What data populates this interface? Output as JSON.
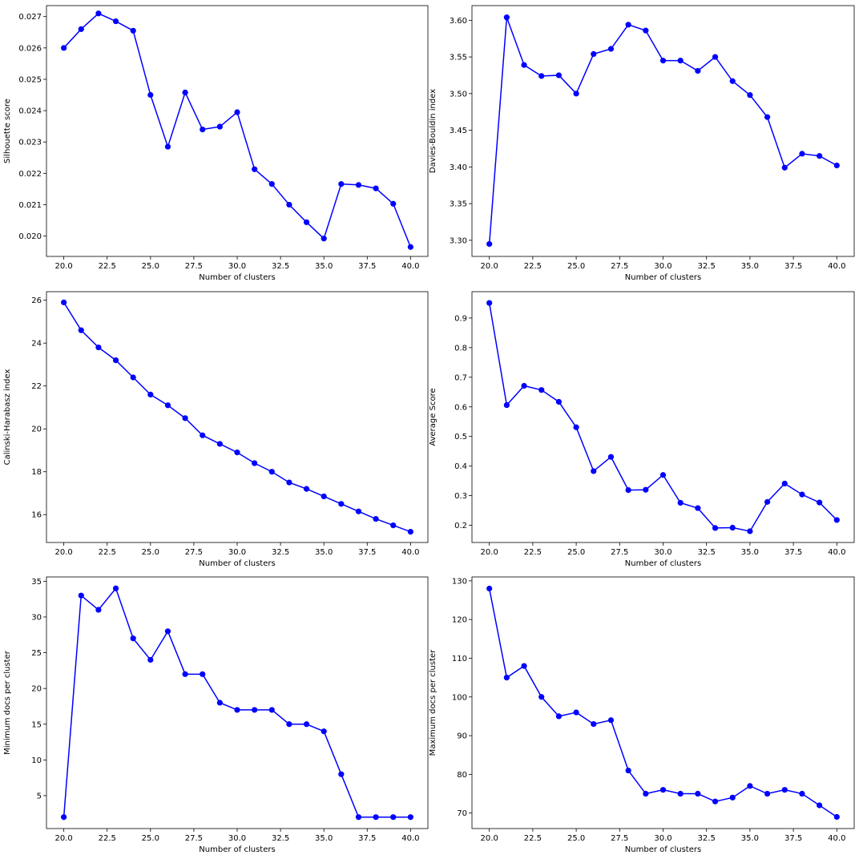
{
  "colors": {
    "series": "#0000ff",
    "marker": "#0000ff",
    "axis": "#000000",
    "background": "#ffffff"
  },
  "chart_data": [
    {
      "type": "line",
      "xlabel": "Number of clusters",
      "ylabel": "Silhouette score",
      "x": [
        20,
        21,
        22,
        23,
        24,
        25,
        26,
        27,
        28,
        29,
        30,
        31,
        32,
        33,
        34,
        35,
        36,
        37,
        38,
        39,
        40
      ],
      "values": [
        0.026,
        0.0266,
        0.0271,
        0.02685,
        0.02655,
        0.0245,
        0.02285,
        0.02458,
        0.0234,
        0.02349,
        0.02395,
        0.02213,
        0.02166,
        0.021,
        0.02044,
        0.01992,
        0.02166,
        0.02163,
        0.02152,
        0.02103,
        0.01965
      ],
      "xlim": [
        19,
        41
      ],
      "ylim": [
        0.01935,
        0.02735
      ],
      "xticks": [
        20.0,
        22.5,
        25.0,
        27.5,
        30.0,
        32.5,
        35.0,
        37.5,
        40.0
      ],
      "xtick_labels": [
        "20.0",
        "22.5",
        "25.0",
        "27.5",
        "30.0",
        "32.5",
        "35.0",
        "37.5",
        "40.0"
      ],
      "yticks": [
        0.02,
        0.021,
        0.022,
        0.023,
        0.024,
        0.025,
        0.026,
        0.027
      ],
      "ytick_labels": [
        "0.020",
        "0.021",
        "0.022",
        "0.023",
        "0.024",
        "0.025",
        "0.026",
        "0.027"
      ],
      "grid": false
    },
    {
      "type": "line",
      "xlabel": "Number of clusters",
      "ylabel": "Davies-Bouldin index",
      "x": [
        20,
        21,
        22,
        23,
        24,
        25,
        26,
        27,
        28,
        29,
        30,
        31,
        32,
        33,
        34,
        35,
        36,
        37,
        38,
        39,
        40
      ],
      "values": [
        3.295,
        3.604,
        3.539,
        3.524,
        3.525,
        3.5,
        3.554,
        3.561,
        3.594,
        3.586,
        3.545,
        3.545,
        3.531,
        3.55,
        3.517,
        3.498,
        3.468,
        3.399,
        3.418,
        3.415,
        3.402
      ],
      "xlim": [
        19,
        41
      ],
      "ylim": [
        3.278,
        3.62
      ],
      "xticks": [
        20.0,
        22.5,
        25.0,
        27.5,
        30.0,
        32.5,
        35.0,
        37.5,
        40.0
      ],
      "xtick_labels": [
        "20.0",
        "22.5",
        "25.0",
        "27.5",
        "30.0",
        "32.5",
        "35.0",
        "37.5",
        "40.0"
      ],
      "yticks": [
        3.3,
        3.35,
        3.4,
        3.45,
        3.5,
        3.55,
        3.6
      ],
      "ytick_labels": [
        "3.30",
        "3.35",
        "3.40",
        "3.45",
        "3.50",
        "3.55",
        "3.60"
      ],
      "grid": false
    },
    {
      "type": "line",
      "xlabel": "Number of clusters",
      "ylabel": "Calinski-Harabasz index",
      "x": [
        20,
        21,
        22,
        23,
        24,
        25,
        26,
        27,
        28,
        29,
        30,
        31,
        32,
        33,
        34,
        35,
        36,
        37,
        38,
        39,
        40
      ],
      "values": [
        25.9,
        24.6,
        23.8,
        23.2,
        22.4,
        21.6,
        21.1,
        20.5,
        19.7,
        19.3,
        18.9,
        18.4,
        18.0,
        17.5,
        17.2,
        16.85,
        16.5,
        16.15,
        15.8,
        15.5,
        15.2
      ],
      "xlim": [
        19,
        41
      ],
      "ylim": [
        14.7,
        26.4
      ],
      "xticks": [
        20.0,
        22.5,
        25.0,
        27.5,
        30.0,
        32.5,
        35.0,
        37.5,
        40.0
      ],
      "xtick_labels": [
        "20.0",
        "22.5",
        "25.0",
        "27.5",
        "30.0",
        "32.5",
        "35.0",
        "37.5",
        "40.0"
      ],
      "yticks": [
        16,
        18,
        20,
        22,
        24,
        26
      ],
      "ytick_labels": [
        "16",
        "18",
        "20",
        "22",
        "24",
        "26"
      ],
      "grid": false
    },
    {
      "type": "line",
      "xlabel": "Number of clusters",
      "ylabel": "Average Score",
      "x": [
        20,
        21,
        22,
        23,
        24,
        25,
        26,
        27,
        28,
        29,
        30,
        31,
        32,
        33,
        34,
        35,
        36,
        37,
        38,
        39,
        40
      ],
      "values": [
        0.951,
        0.606,
        0.671,
        0.657,
        0.617,
        0.531,
        0.383,
        0.431,
        0.319,
        0.32,
        0.37,
        0.276,
        0.258,
        0.191,
        0.192,
        0.18,
        0.279,
        0.341,
        0.304,
        0.277,
        0.218
      ],
      "xlim": [
        19,
        41
      ],
      "ylim": [
        0.142,
        0.989
      ],
      "xticks": [
        20.0,
        22.5,
        25.0,
        27.5,
        30.0,
        32.5,
        35.0,
        37.5,
        40.0
      ],
      "xtick_labels": [
        "20.0",
        "22.5",
        "25.0",
        "27.5",
        "30.0",
        "32.5",
        "35.0",
        "37.5",
        "40.0"
      ],
      "yticks": [
        0.2,
        0.3,
        0.4,
        0.5,
        0.6,
        0.7,
        0.8,
        0.9
      ],
      "ytick_labels": [
        "0.2",
        "0.3",
        "0.4",
        "0.5",
        "0.6",
        "0.7",
        "0.8",
        "0.9"
      ],
      "grid": false
    },
    {
      "type": "line",
      "xlabel": "Number of clusters",
      "ylabel": "Minimum docs per cluster",
      "x": [
        20,
        21,
        22,
        23,
        24,
        25,
        26,
        27,
        28,
        29,
        30,
        31,
        32,
        33,
        34,
        35,
        36,
        37,
        38,
        39,
        40
      ],
      "values": [
        2,
        33,
        31,
        34,
        27,
        24,
        28,
        22,
        22,
        18,
        17,
        17,
        17,
        15,
        15,
        14,
        8,
        2,
        2,
        2,
        2
      ],
      "xlim": [
        19,
        41
      ],
      "ylim": [
        0.4,
        35.6
      ],
      "xticks": [
        20.0,
        22.5,
        25.0,
        27.5,
        30.0,
        32.5,
        35.0,
        37.5,
        40.0
      ],
      "xtick_labels": [
        "20.0",
        "22.5",
        "25.0",
        "27.5",
        "30.0",
        "32.5",
        "35.0",
        "37.5",
        "40.0"
      ],
      "yticks": [
        5,
        10,
        15,
        20,
        25,
        30,
        35
      ],
      "ytick_labels": [
        "5",
        "10",
        "15",
        "20",
        "25",
        "30",
        "35"
      ],
      "grid": false
    },
    {
      "type": "line",
      "xlabel": "Number of clusters",
      "ylabel": "Maximum docs per cluster",
      "x": [
        20,
        21,
        22,
        23,
        24,
        25,
        26,
        27,
        28,
        29,
        30,
        31,
        32,
        33,
        34,
        35,
        36,
        37,
        38,
        39,
        40
      ],
      "values": [
        128,
        105,
        108,
        100,
        95,
        96,
        93,
        94,
        81,
        75,
        76,
        75,
        75,
        73,
        74,
        77,
        75,
        76,
        75,
        72,
        69
      ],
      "xlim": [
        19,
        41
      ],
      "ylim": [
        66.0,
        131.0
      ],
      "xticks": [
        20.0,
        22.5,
        25.0,
        27.5,
        30.0,
        32.5,
        35.0,
        37.5,
        40.0
      ],
      "xtick_labels": [
        "20.0",
        "22.5",
        "25.0",
        "27.5",
        "30.0",
        "32.5",
        "35.0",
        "37.5",
        "40.0"
      ],
      "yticks": [
        70,
        80,
        90,
        100,
        110,
        120,
        130
      ],
      "ytick_labels": [
        "70",
        "80",
        "90",
        "100",
        "110",
        "120",
        "130"
      ],
      "grid": false
    }
  ]
}
